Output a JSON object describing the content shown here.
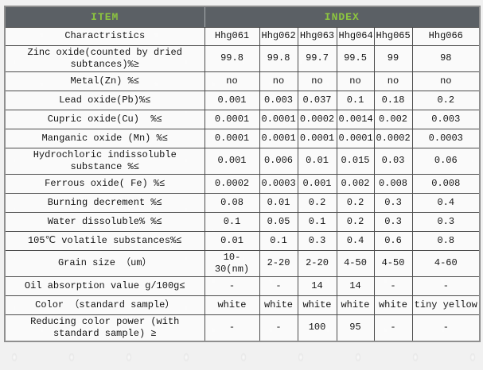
{
  "table": {
    "header": {
      "item_label": "ITEM",
      "index_label": "INDEX",
      "bg": "#5b6065",
      "text_color": "#8dc63f"
    },
    "columns": [
      "Charactristics",
      "Hhg061",
      "Hhg062",
      "Hhg063",
      "Hhg064",
      "Hhg065",
      "Hhg066"
    ],
    "rows": [
      {
        "label": "Zinc oxide(counted by dried subtances)%≥",
        "values": [
          "99.8",
          "99.8",
          "99.7",
          "99.5",
          "99",
          "98"
        ]
      },
      {
        "label": "Metal(Zn) %≤",
        "values": [
          "no",
          "no",
          "no",
          "no",
          "no",
          "no"
        ]
      },
      {
        "label": "Lead oxide(Pb)%≤",
        "values": [
          "0.001",
          "0.003",
          "0.037",
          "0.1",
          "0.18",
          "0.2"
        ]
      },
      {
        "label": "Cupric oxide(Cu)  %≤",
        "values": [
          "0.0001",
          "0.0001",
          "0.0002",
          "0.0014",
          "0.002",
          "0.003"
        ]
      },
      {
        "label": "Manganic oxide (Mn) %≤",
        "values": [
          "0.0001",
          "0.0001",
          "0.0001",
          "0.0001",
          "0.0002",
          "0.0003"
        ]
      },
      {
        "label": "Hydrochloric indissoluble substance %≤",
        "values": [
          "0.001",
          "0.006",
          "0.01",
          "0.015",
          "0.03",
          "0.06"
        ]
      },
      {
        "label": "Ferrous oxide( Fe) %≤",
        "values": [
          "0.0002",
          "0.0003",
          "0.001",
          "0.002",
          "0.008",
          "0.008"
        ]
      },
      {
        "label": "Burning decrement %≤",
        "values": [
          "0.08",
          "0.01",
          "0.2",
          "0.2",
          "0.3",
          "0.4"
        ]
      },
      {
        "label": "Water dissoluble% %≤",
        "values": [
          "0.1",
          "0.05",
          "0.1",
          "0.2",
          "0.3",
          "0.3"
        ]
      },
      {
        "label": "105℃ volatile substances%≤",
        "values": [
          "0.01",
          "0.1",
          "0.3",
          "0.4",
          "0.6",
          "0.8"
        ]
      },
      {
        "label": "Grain size （um）",
        "values": [
          "10-30(nm)",
          "2-20",
          "2-20",
          "4-50",
          "4-50",
          "4-60"
        ]
      },
      {
        "label": "Oil absorption value g/100g≤",
        "values": [
          "-",
          "-",
          "14",
          "14",
          "-",
          "-"
        ]
      },
      {
        "label": "Color （standard sample）",
        "values": [
          "white",
          "white",
          "white",
          "white",
          "white",
          "tiny yellow"
        ]
      },
      {
        "label": "Reducing color power (with standard sample) ≥",
        "values": [
          "-",
          "-",
          "100",
          "95",
          "-",
          "-"
        ]
      }
    ]
  }
}
